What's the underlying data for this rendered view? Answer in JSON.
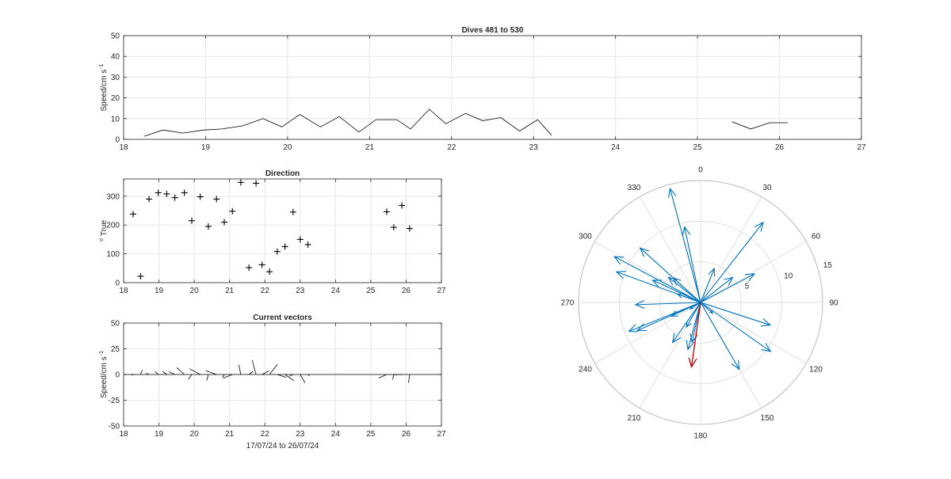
{
  "chart_data": [
    {
      "id": "speed",
      "type": "line",
      "title": "Dives 481 to 530",
      "xlabel": "",
      "ylabel": "Speed/cm s",
      "ylabel_sup": "-1",
      "xlim": [
        18,
        27
      ],
      "ylim": [
        0,
        50
      ],
      "xticks": [
        18,
        19,
        20,
        21,
        22,
        23,
        24,
        25,
        26,
        27
      ],
      "yticks": [
        0,
        10,
        20,
        30,
        40,
        50
      ],
      "grid": true,
      "segments": [
        {
          "x": [
            18.25,
            18.48,
            18.72,
            18.98,
            19.2,
            19.45,
            19.7,
            19.93,
            20.15,
            20.4,
            20.63,
            20.87,
            21.08,
            21.33,
            21.5,
            21.73,
            21.93,
            22.17,
            22.38,
            22.6,
            22.83,
            23.05,
            23.22
          ],
          "y": [
            1.5,
            4.5,
            3,
            4.5,
            5,
            6.5,
            10,
            6,
            12,
            6,
            11,
            3.5,
            9.5,
            9.5,
            5,
            14.5,
            7.5,
            12.5,
            9,
            10.5,
            4,
            9.5,
            2
          ]
        },
        {
          "x": [
            25.42,
            25.65,
            25.88,
            26.1
          ],
          "y": [
            8.5,
            5,
            8,
            8
          ]
        }
      ]
    },
    {
      "id": "direction",
      "type": "scatter",
      "title": "Direction",
      "xlabel": "",
      "ylabel": "True",
      "ylabel_sup": "o",
      "xlim": [
        18,
        27
      ],
      "ylim": [
        0,
        360
      ],
      "xticks": [
        18,
        19,
        20,
        21,
        22,
        23,
        24,
        25,
        26,
        27
      ],
      "yticks": [
        0,
        100,
        200,
        300
      ],
      "grid": true,
      "marker": "+",
      "x": [
        18.27,
        18.48,
        18.72,
        18.98,
        19.22,
        19.45,
        19.72,
        19.93,
        20.17,
        20.4,
        20.63,
        20.85,
        21.08,
        21.32,
        21.55,
        21.75,
        21.92,
        22.13,
        22.35,
        22.57,
        22.8,
        23.0,
        23.22,
        25.45,
        25.65,
        25.88,
        26.1
      ],
      "y": [
        238,
        22,
        290,
        312,
        308,
        295,
        312,
        215,
        298,
        195,
        290,
        210,
        248,
        348,
        52,
        345,
        62,
        38,
        108,
        125,
        245,
        150,
        132,
        246,
        192,
        268,
        188
      ]
    },
    {
      "id": "vectors",
      "type": "line",
      "title": "Current vectors",
      "xlabel": "17/07/24 to 26/07/24",
      "ylabel": "Speed/cm s",
      "ylabel_sup": "-1",
      "xlim": [
        18,
        27
      ],
      "ylim": [
        -50,
        50
      ],
      "xticks": [
        18,
        19,
        20,
        21,
        22,
        23,
        24,
        25,
        26,
        27
      ],
      "yticks": [
        -50,
        -25,
        0,
        25,
        50
      ],
      "grid": true,
      "baseline": 0,
      "vectors": [
        {
          "x": 18.27,
          "speed": 1.5,
          "dir": 238
        },
        {
          "x": 18.48,
          "speed": 4.5,
          "dir": 22
        },
        {
          "x": 18.72,
          "speed": 3,
          "dir": 290
        },
        {
          "x": 18.98,
          "speed": 4.5,
          "dir": 312
        },
        {
          "x": 19.22,
          "speed": 5,
          "dir": 308
        },
        {
          "x": 19.45,
          "speed": 6.5,
          "dir": 295
        },
        {
          "x": 19.72,
          "speed": 10,
          "dir": 312
        },
        {
          "x": 19.93,
          "speed": 6,
          "dir": 215
        },
        {
          "x": 20.17,
          "speed": 12,
          "dir": 298
        },
        {
          "x": 20.4,
          "speed": 6,
          "dir": 195
        },
        {
          "x": 20.63,
          "speed": 11,
          "dir": 290
        },
        {
          "x": 20.85,
          "speed": 3.5,
          "dir": 210
        },
        {
          "x": 21.08,
          "speed": 9.5,
          "dir": 248
        },
        {
          "x": 21.32,
          "speed": 9.5,
          "dir": 348
        },
        {
          "x": 21.55,
          "speed": 5,
          "dir": 52
        },
        {
          "x": 21.75,
          "speed": 14.5,
          "dir": 345
        },
        {
          "x": 21.92,
          "speed": 7.5,
          "dir": 62
        },
        {
          "x": 22.13,
          "speed": 12.5,
          "dir": 38
        },
        {
          "x": 22.35,
          "speed": 9,
          "dir": 108
        },
        {
          "x": 22.57,
          "speed": 10.5,
          "dir": 125
        },
        {
          "x": 22.8,
          "speed": 4,
          "dir": 245
        },
        {
          "x": 23.0,
          "speed": 9.5,
          "dir": 150
        },
        {
          "x": 23.22,
          "speed": 2,
          "dir": 132
        },
        {
          "x": 25.45,
          "speed": 8.5,
          "dir": 246
        },
        {
          "x": 25.65,
          "speed": 5,
          "dir": 192
        },
        {
          "x": 25.88,
          "speed": 8,
          "dir": 268
        },
        {
          "x": 26.1,
          "speed": 8,
          "dir": 188
        }
      ]
    },
    {
      "id": "compass",
      "type": "polar",
      "title": "",
      "rlim": [
        0,
        15
      ],
      "rticks": [
        5,
        10,
        15
      ],
      "theta_ticks": [
        0,
        30,
        60,
        90,
        120,
        150,
        180,
        210,
        240,
        270,
        300,
        330
      ],
      "theta_zero": "top",
      "theta_direction": "clockwise",
      "arrow_color": "#0072BD",
      "highlight_color": "#D40000",
      "arrows": [
        {
          "dir": 238,
          "speed": 1.5
        },
        {
          "dir": 22,
          "speed": 4.5
        },
        {
          "dir": 290,
          "speed": 3
        },
        {
          "dir": 312,
          "speed": 4.5
        },
        {
          "dir": 308,
          "speed": 5
        },
        {
          "dir": 295,
          "speed": 6.5
        },
        {
          "dir": 312,
          "speed": 10
        },
        {
          "dir": 215,
          "speed": 6
        },
        {
          "dir": 298,
          "speed": 12
        },
        {
          "dir": 195,
          "speed": 6
        },
        {
          "dir": 290,
          "speed": 11
        },
        {
          "dir": 210,
          "speed": 3.5
        },
        {
          "dir": 248,
          "speed": 9.5
        },
        {
          "dir": 348,
          "speed": 9.5
        },
        {
          "dir": 52,
          "speed": 5
        },
        {
          "dir": 345,
          "speed": 14.5
        },
        {
          "dir": 62,
          "speed": 7.5
        },
        {
          "dir": 38,
          "speed": 12.5
        },
        {
          "dir": 108,
          "speed": 9
        },
        {
          "dir": 125,
          "speed": 10.5
        },
        {
          "dir": 245,
          "speed": 4
        },
        {
          "dir": 150,
          "speed": 9.5
        },
        {
          "dir": 132,
          "speed": 2
        },
        {
          "dir": 246,
          "speed": 8.5
        },
        {
          "dir": 192,
          "speed": 5
        },
        {
          "dir": 268,
          "speed": 8
        },
        {
          "dir": 188,
          "speed": 8
        }
      ],
      "mean_arrow": {
        "dir": 188,
        "speed": 8
      }
    }
  ]
}
